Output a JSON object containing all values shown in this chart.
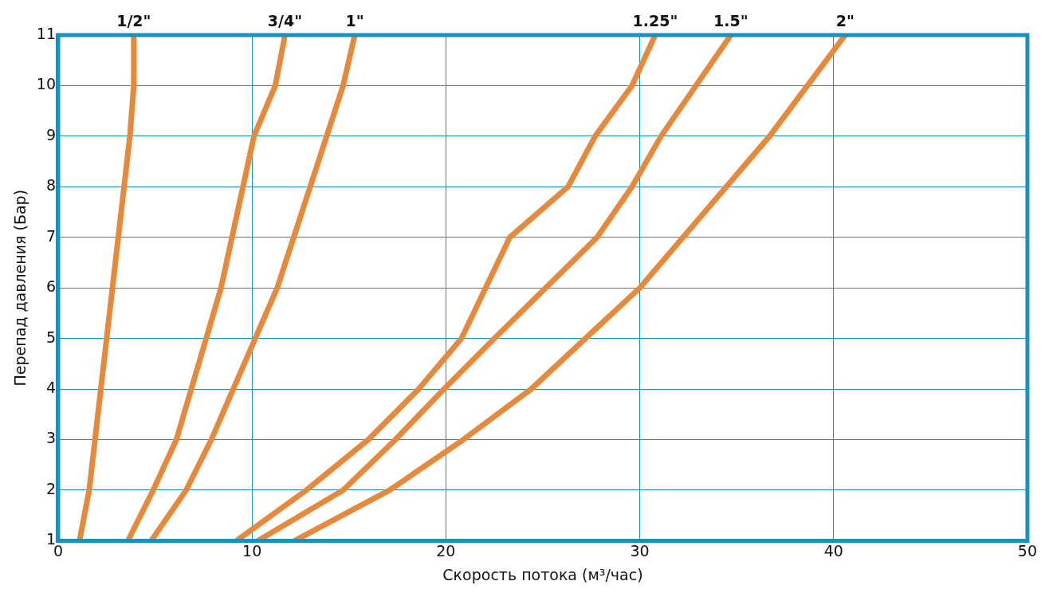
{
  "chart_data": {
    "type": "line",
    "xlabel": "Скорость потока (м³/час)",
    "ylabel": "Перепад давления (Бар)",
    "xlim": [
      0,
      50
    ],
    "xticks": [
      0,
      10,
      20,
      30,
      40,
      50
    ],
    "ylim": [
      1,
      11
    ],
    "yticks": [
      1,
      2,
      3,
      4,
      5,
      6,
      7,
      8,
      9,
      10,
      11
    ],
    "grid": true,
    "legend": false,
    "marker": "none",
    "line_style": "solid",
    "series": [
      {
        "name": "1/2\"",
        "color": "#e8883a",
        "x": [
          1.1,
          1.6,
          3.7,
          3.9,
          3.9
        ],
        "values": [
          1,
          2,
          9,
          10,
          11
        ]
      },
      {
        "name": "3/4\"",
        "color": "#e8883a",
        "x": [
          3.6,
          4.9,
          6.1,
          8.4,
          10.1,
          11.2,
          11.7
        ],
        "values": [
          1,
          2,
          3,
          6,
          9,
          10,
          11
        ]
      },
      {
        "name": "1\"",
        "color": "#e8883a",
        "x": [
          4.8,
          6.6,
          7.9,
          11.3,
          14.7,
          15.3
        ],
        "values": [
          1,
          2,
          3,
          6,
          10,
          11
        ]
      },
      {
        "name": "1.25\"",
        "color": "#e8883a",
        "x": [
          9.2,
          12.8,
          16.0,
          18.6,
          20.8,
          23.3,
          26.3,
          27.7,
          29.6,
          30.8
        ],
        "values": [
          1,
          2,
          3,
          4,
          5,
          7,
          8,
          9,
          10,
          11
        ]
      },
      {
        "name": "1.5\"",
        "color": "#e8883a",
        "x": [
          10.3,
          14.7,
          17.4,
          19.9,
          22.5,
          27.8,
          29.6,
          31.1,
          34.7
        ],
        "values": [
          1,
          2,
          3,
          4,
          5,
          7,
          8,
          9,
          11
        ]
      },
      {
        "name": "2\"",
        "color": "#e8883a",
        "x": [
          12.2,
          17.1,
          20.9,
          24.4,
          27.2,
          30.0,
          36.7,
          40.6
        ],
        "values": [
          1,
          2,
          3,
          4,
          5,
          6,
          9,
          11
        ]
      }
    ]
  }
}
